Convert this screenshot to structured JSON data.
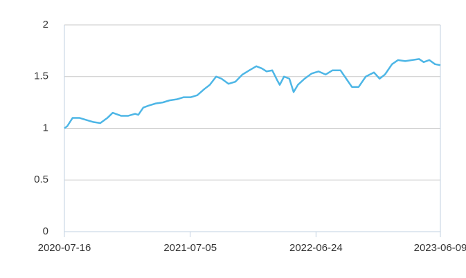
{
  "chart_data": {
    "type": "line",
    "x": [
      "2020-07-16",
      "2020-07-24",
      "2020-08-08",
      "2020-08-28",
      "2020-09-16",
      "2020-10-06",
      "2020-10-25",
      "2020-11-14",
      "2020-11-29",
      "2020-12-23",
      "2021-01-11",
      "2021-01-31",
      "2021-02-09",
      "2021-02-23",
      "2021-03-11",
      "2021-03-30",
      "2021-04-19",
      "2021-05-08",
      "2021-05-28",
      "2021-06-16",
      "2021-07-06",
      "2021-07-25",
      "2021-08-14",
      "2021-08-29",
      "2021-09-16",
      "2021-10-01",
      "2021-10-21",
      "2021-11-09",
      "2021-11-29",
      "2021-12-18",
      "2022-01-07",
      "2022-01-22",
      "2022-02-05",
      "2022-02-21",
      "2022-03-06",
      "2022-03-14",
      "2022-03-26",
      "2022-04-10",
      "2022-04-22",
      "2022-05-04",
      "2022-05-23",
      "2022-06-12",
      "2022-07-01",
      "2022-07-21",
      "2022-08-09",
      "2022-09-01",
      "2022-09-17",
      "2022-10-03",
      "2022-10-22",
      "2022-11-11",
      "2022-12-04",
      "2022-12-20",
      "2023-01-04",
      "2023-01-24",
      "2023-02-10",
      "2023-03-02",
      "2023-03-21",
      "2023-04-10",
      "2023-04-23",
      "2023-05-09",
      "2023-05-25",
      "2023-06-09"
    ],
    "series": [
      {
        "color": "#4db6e6",
        "values": [
          1.0,
          1.02,
          1.1,
          1.1,
          1.08,
          1.06,
          1.05,
          1.1,
          1.15,
          1.12,
          1.12,
          1.14,
          1.13,
          1.2,
          1.22,
          1.24,
          1.25,
          1.27,
          1.28,
          1.3,
          1.3,
          1.32,
          1.38,
          1.42,
          1.5,
          1.48,
          1.43,
          1.45,
          1.52,
          1.56,
          1.6,
          1.58,
          1.55,
          1.56,
          1.47,
          1.42,
          1.5,
          1.48,
          1.35,
          1.42,
          1.48,
          1.53,
          1.55,
          1.52,
          1.56,
          1.56,
          1.48,
          1.4,
          1.4,
          1.5,
          1.54,
          1.48,
          1.52,
          1.62,
          1.66,
          1.65,
          1.66,
          1.67,
          1.64,
          1.66,
          1.62,
          1.61
        ]
      }
    ],
    "xlim": [
      "2020-07-16",
      "2023-06-09"
    ],
    "xticks": [
      "2020-07-16",
      "2021-07-05",
      "2022-06-24",
      "2023-06-09"
    ],
    "ylim": [
      0,
      2
    ],
    "yticks": [
      0,
      0.5,
      1,
      1.5,
      2
    ],
    "grid": true
  }
}
